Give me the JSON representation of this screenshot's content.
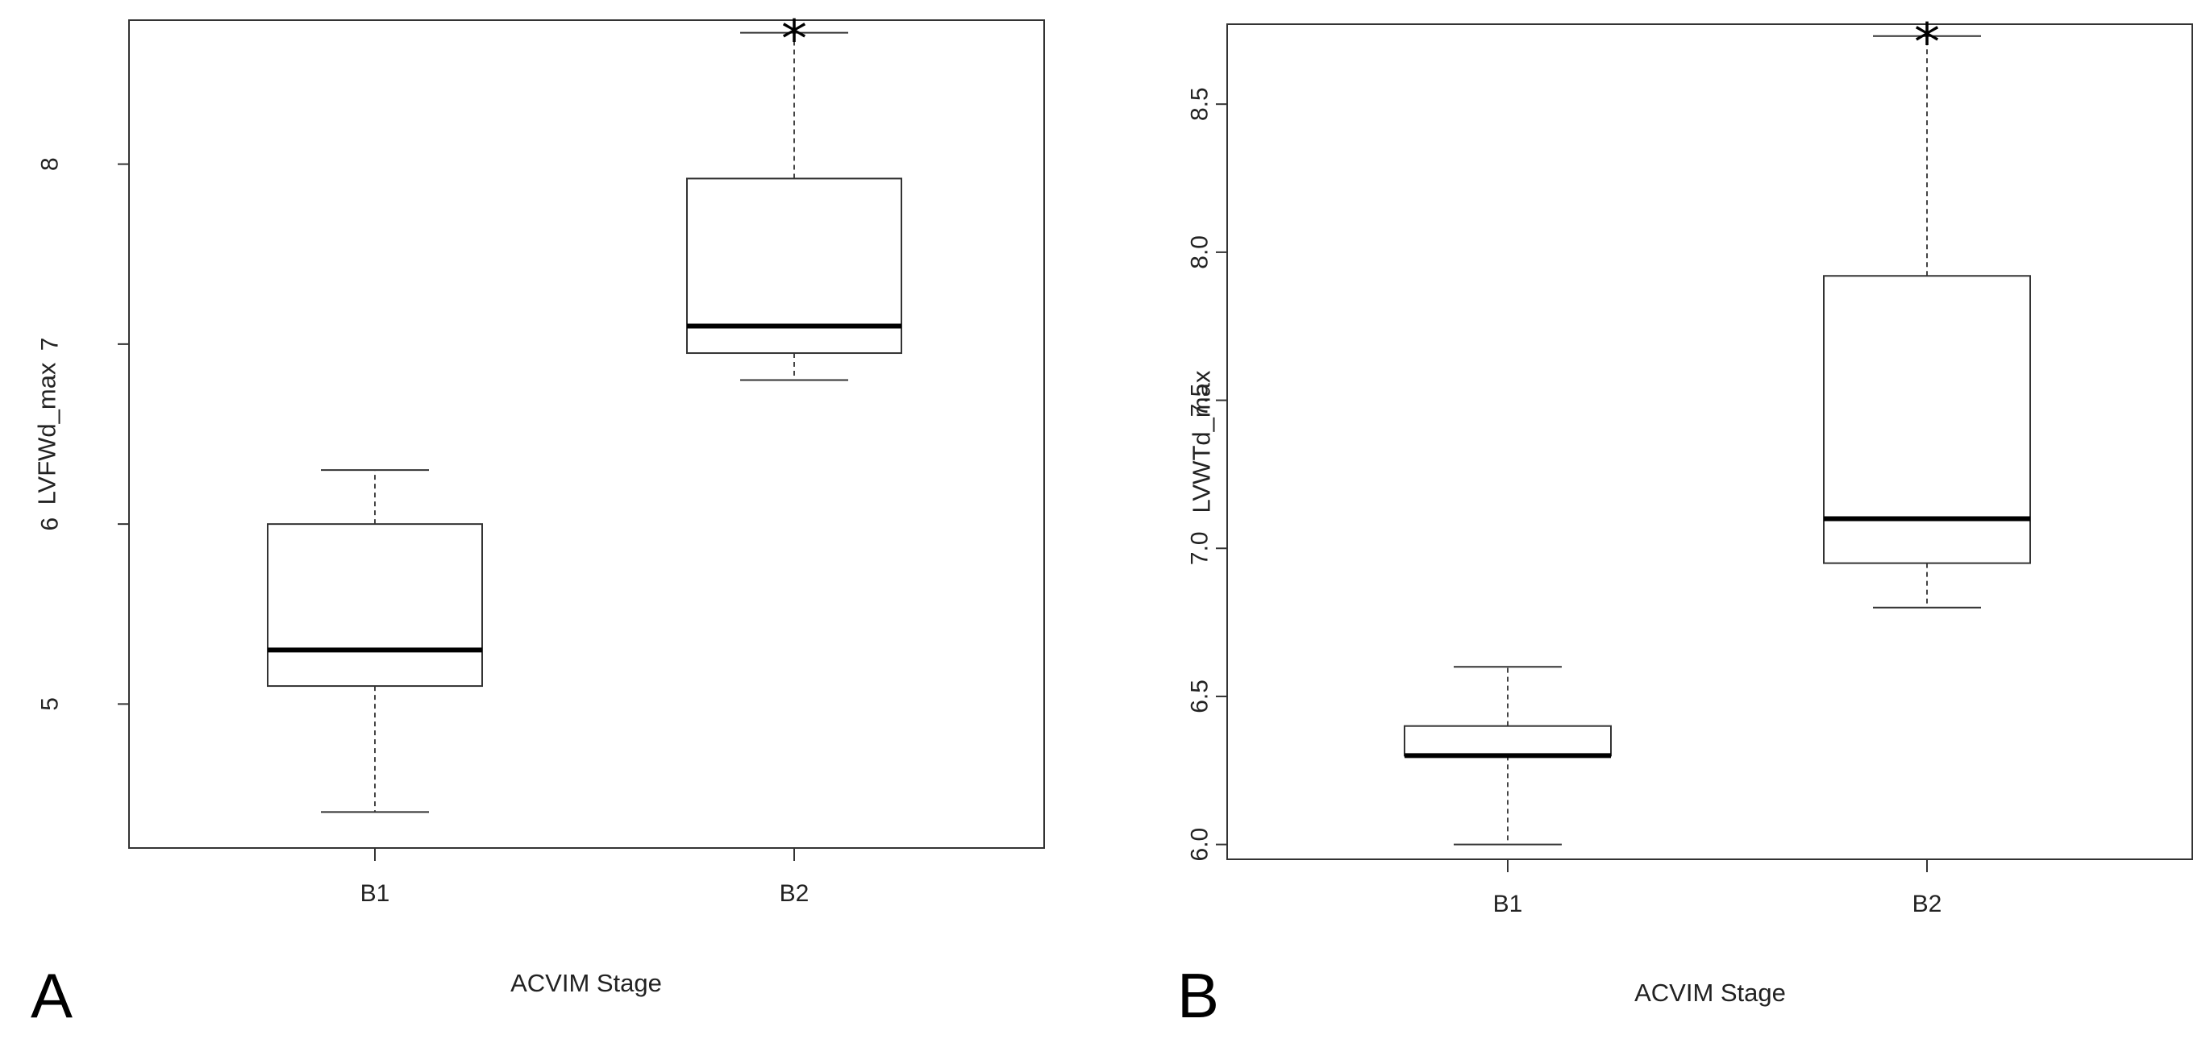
{
  "chart_data": [
    {
      "type": "box",
      "panel_label": "A",
      "xlabel": "ACVIM Stage",
      "ylabel": "LVFWd_max",
      "categories": [
        "B1",
        "B2"
      ],
      "ylim": [
        4.2,
        8.8
      ],
      "yticks": [
        5,
        6,
        7,
        8
      ],
      "ytick_labels": [
        "5",
        "6",
        "7",
        "8"
      ],
      "boxes": [
        {
          "name": "B1",
          "min": 4.4,
          "q1": 5.1,
          "median": 5.3,
          "q3": 6.0,
          "max": 6.3,
          "annotation": ""
        },
        {
          "name": "B2",
          "min": 6.8,
          "q1": 6.95,
          "median": 7.1,
          "q3": 7.92,
          "max": 8.73,
          "annotation": "*"
        }
      ],
      "grid": false,
      "legend": "none"
    },
    {
      "type": "box",
      "panel_label": "B",
      "xlabel": "ACVIM Stage",
      "ylabel": "LVWTd_max",
      "categories": [
        "B1",
        "B2"
      ],
      "ylim": [
        5.95,
        8.77
      ],
      "yticks": [
        6.0,
        6.5,
        7.0,
        7.5,
        8.0,
        8.5
      ],
      "ytick_labels": [
        "6.0",
        "6.5",
        "7.0",
        "7.5",
        "8.0",
        "8.5"
      ],
      "boxes": [
        {
          "name": "B1",
          "min": 6.0,
          "q1": 6.3,
          "median": 6.3,
          "q3": 6.4,
          "max": 6.6,
          "annotation": ""
        },
        {
          "name": "B2",
          "min": 6.8,
          "q1": 6.95,
          "median": 7.1,
          "q3": 7.92,
          "max": 8.73,
          "annotation": "*"
        }
      ],
      "grid": false,
      "legend": "none"
    }
  ]
}
